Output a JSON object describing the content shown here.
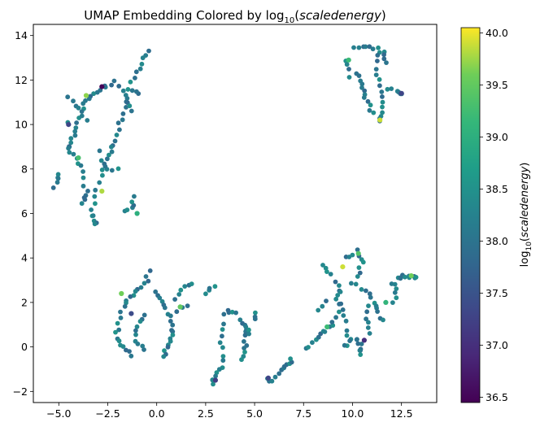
{
  "chart_data": {
    "type": "scatter",
    "title": {
      "prefix": "UMAP Embedding Colored by log",
      "sub": "10",
      "suffix": "(",
      "italic": "scaledenergy",
      "close": ")"
    },
    "xlim": [
      -6.3,
      14.3
    ],
    "ylim": [
      -2.5,
      14.5
    ],
    "xticks": [
      -5.0,
      -2.5,
      0.0,
      2.5,
      5.0,
      7.5,
      10.0,
      12.5
    ],
    "xtick_labels": [
      "−5.0",
      "−2.5",
      "0.0",
      "2.5",
      "5.0",
      "7.5",
      "10.0",
      "12.5"
    ],
    "yticks": [
      -2,
      0,
      2,
      4,
      6,
      8,
      10,
      12,
      14
    ],
    "ytick_labels": [
      "−2",
      "0",
      "2",
      "4",
      "6",
      "8",
      "10",
      "12",
      "14"
    ],
    "grid": false,
    "colormap": "viridis",
    "colorbar": {
      "label": {
        "prefix": "log",
        "sub": "10",
        "open": "(",
        "italic": "scaledenergy",
        "close": ")"
      },
      "range": [
        36.45,
        40.05
      ],
      "ticks": [
        36.5,
        37.0,
        37.5,
        38.0,
        38.5,
        39.0,
        39.5,
        40.0
      ],
      "tick_labels": [
        "36.5",
        "37.0",
        "37.5",
        "38.0",
        "38.5",
        "39.0",
        "39.5",
        "40.0"
      ]
    },
    "strands": [
      {
        "path": [
          [
            -0.4,
            13.3
          ],
          [
            -0.9,
            12.5
          ],
          [
            -1.5,
            11.4
          ],
          [
            -1.8,
            10.2
          ],
          [
            -2.2,
            9.2
          ],
          [
            -2.5,
            8.5
          ],
          [
            -3.0,
            7.3
          ],
          [
            -3.3,
            6.0
          ],
          [
            -3.1,
            5.5
          ]
        ],
        "count": 36
      },
      {
        "path": [
          [
            -2.2,
            11.9
          ],
          [
            -2.9,
            11.6
          ],
          [
            -3.5,
            11.2
          ],
          [
            -3.9,
            10.5
          ],
          [
            -4.2,
            9.6
          ],
          [
            -4.5,
            8.8
          ],
          [
            -3.9,
            8.2
          ],
          [
            -3.6,
            7.0
          ],
          [
            -3.8,
            6.5
          ]
        ],
        "count": 34
      },
      {
        "path": [
          [
            -4.5,
            11.2
          ],
          [
            -4.1,
            10.8
          ],
          [
            -3.5,
            10.2
          ]
        ],
        "count": 6
      },
      {
        "path": [
          [
            -1.9,
            11.8
          ],
          [
            -1.5,
            11.1
          ],
          [
            -1.2,
            10.6
          ]
        ],
        "count": 6
      },
      {
        "path": [
          [
            -5.0,
            7.8
          ],
          [
            -5.2,
            7.2
          ]
        ],
        "count": 5
      },
      {
        "path": [
          [
            -2.0,
            8.0
          ],
          [
            -2.6,
            7.9
          ],
          [
            -3.0,
            8.8
          ]
        ],
        "count": 6
      },
      {
        "path": [
          [
            -1.6,
            6.1
          ],
          [
            -1.2,
            6.3
          ],
          [
            -1.2,
            6.7
          ]
        ],
        "count": 6
      },
      {
        "path": [
          [
            -1.0,
            11.4
          ],
          [
            -1.2,
            11.6
          ]
        ],
        "count": 3
      },
      {
        "path": [
          [
            -4.5,
            10.0
          ]
        ],
        "count": 1
      },
      {
        "path": [
          [
            -4.5,
            9.0
          ]
        ],
        "count": 2
      },
      {
        "path": [
          [
            10.1,
            13.5
          ],
          [
            10.9,
            13.5
          ],
          [
            11.5,
            13.3
          ],
          [
            11.7,
            12.8
          ]
        ],
        "count": 12
      },
      {
        "path": [
          [
            11.2,
            13.1
          ],
          [
            11.3,
            12.2
          ],
          [
            11.6,
            11.4
          ],
          [
            11.5,
            10.6
          ],
          [
            11.4,
            10.1
          ]
        ],
        "count": 14
      },
      {
        "path": [
          [
            10.2,
            12.3
          ],
          [
            10.5,
            11.8
          ],
          [
            10.7,
            11.1
          ],
          [
            11.0,
            10.5
          ]
        ],
        "count": 12
      },
      {
        "path": [
          [
            11.8,
            11.6
          ],
          [
            12.4,
            11.5
          ],
          [
            12.6,
            11.3
          ]
        ],
        "count": 6
      },
      {
        "path": [
          [
            9.7,
            12.9
          ],
          [
            9.9,
            12.2
          ]
        ],
        "count": 4
      },
      {
        "path": [
          [
            -0.4,
            3.4
          ],
          [
            -0.6,
            2.8
          ],
          [
            -1.2,
            2.4
          ],
          [
            -1.6,
            2.0
          ],
          [
            -1.9,
            1.3
          ],
          [
            -2.1,
            0.5
          ],
          [
            -1.8,
            0.0
          ],
          [
            -1.3,
            -0.4
          ]
        ],
        "count": 24
      },
      {
        "path": [
          [
            0.0,
            2.5
          ],
          [
            0.4,
            2.0
          ],
          [
            0.7,
            1.2
          ],
          [
            0.8,
            0.6
          ],
          [
            0.6,
            0.0
          ],
          [
            0.3,
            -0.4
          ]
        ],
        "count": 20
      },
      {
        "path": [
          [
            -0.7,
            1.5
          ],
          [
            -1.0,
            0.9
          ],
          [
            -1.0,
            0.3
          ],
          [
            -0.7,
            -0.1
          ]
        ],
        "count": 10
      },
      {
        "path": [
          [
            1.0,
            2.2
          ],
          [
            1.4,
            2.7
          ],
          [
            1.7,
            2.9
          ]
        ],
        "count": 6
      },
      {
        "path": [
          [
            1.1,
            1.6
          ],
          [
            1.5,
            1.9
          ]
        ],
        "count": 3
      },
      {
        "path": [
          [
            2.5,
            2.4
          ],
          [
            2.9,
            2.7
          ]
        ],
        "count": 4
      },
      {
        "path": [
          [
            3.4,
            1.4
          ],
          [
            3.3,
            0.3
          ],
          [
            3.4,
            -0.8
          ],
          [
            3.0,
            -1.4
          ],
          [
            2.8,
            -1.6
          ]
        ],
        "count": 16
      },
      {
        "path": [
          [
            3.6,
            1.6
          ],
          [
            4.0,
            1.6
          ]
        ],
        "count": 4
      },
      {
        "path": [
          [
            4.3,
            1.2
          ],
          [
            4.6,
            0.8
          ],
          [
            4.5,
            0.0
          ],
          [
            4.3,
            -0.5
          ]
        ],
        "count": 12
      },
      {
        "path": [
          [
            5.0,
            1.5
          ],
          [
            5.1,
            1.2
          ]
        ],
        "count": 3
      },
      {
        "path": [
          [
            4.6,
            0.8
          ],
          [
            4.8,
            0.6
          ]
        ],
        "count": 3
      },
      {
        "path": [
          [
            6.1,
            -1.3
          ],
          [
            6.6,
            -0.9
          ],
          [
            6.9,
            -0.6
          ]
        ],
        "count": 9
      },
      {
        "path": [
          [
            5.6,
            -1.4
          ],
          [
            5.9,
            -1.6
          ]
        ],
        "count": 3
      },
      {
        "path": [
          [
            7.7,
            -0.1
          ],
          [
            8.1,
            0.3
          ],
          [
            8.6,
            0.7
          ],
          [
            9.0,
            1.1
          ],
          [
            9.4,
            1.9
          ]
        ],
        "count": 14
      },
      {
        "path": [
          [
            8.4,
            3.7
          ],
          [
            8.9,
            3.2
          ],
          [
            9.4,
            2.6
          ],
          [
            9.2,
            2.1
          ],
          [
            9.6,
            1.4
          ],
          [
            9.8,
            0.5
          ]
        ],
        "count": 16
      },
      {
        "path": [
          [
            9.6,
            4.0
          ],
          [
            10.3,
            4.3
          ],
          [
            10.5,
            3.8
          ],
          [
            10.2,
            3.1
          ]
        ],
        "count": 10
      },
      {
        "path": [
          [
            10.0,
            2.9
          ],
          [
            10.8,
            2.4
          ],
          [
            11.2,
            1.8
          ],
          [
            11.5,
            1.2
          ]
        ],
        "count": 12
      },
      {
        "path": [
          [
            10.2,
            0.4
          ],
          [
            10.5,
            0.0
          ],
          [
            10.4,
            -0.3
          ]
        ],
        "count": 8
      },
      {
        "path": [
          [
            9.9,
            0.3
          ],
          [
            9.6,
            0.0
          ]
        ],
        "count": 4
      },
      {
        "path": [
          [
            12.3,
            3.1
          ],
          [
            12.8,
            3.2
          ],
          [
            13.3,
            3.1
          ]
        ],
        "count": 10
      },
      {
        "path": [
          [
            12.0,
            2.9
          ],
          [
            12.3,
            2.5
          ],
          [
            12.1,
            2.0
          ]
        ],
        "count": 6
      },
      {
        "path": [
          [
            8.6,
            2.0
          ],
          [
            8.2,
            1.7
          ]
        ],
        "count": 3
      },
      {
        "path": [
          [
            10.9,
            1.8
          ],
          [
            10.7,
            1.2
          ],
          [
            10.8,
            0.6
          ]
        ],
        "count": 6
      }
    ],
    "highlight_points": [
      {
        "x": -2.8,
        "y": 11.7,
        "value": 36.5
      },
      {
        "x": -3.6,
        "y": 11.3,
        "value": 39.7
      },
      {
        "x": -2.8,
        "y": 7.0,
        "value": 39.8
      },
      {
        "x": -4.0,
        "y": 8.5,
        "value": 39.3
      },
      {
        "x": -1.8,
        "y": 2.4,
        "value": 39.6
      },
      {
        "x": 1.2,
        "y": 1.8,
        "value": 39.5
      },
      {
        "x": 9.5,
        "y": 3.6,
        "value": 39.9
      },
      {
        "x": 10.3,
        "y": 4.2,
        "value": 39.4
      },
      {
        "x": 11.4,
        "y": 10.2,
        "value": 39.9
      },
      {
        "x": 13.0,
        "y": 3.2,
        "value": 39.6
      },
      {
        "x": -1.3,
        "y": 1.5,
        "value": 37.4
      },
      {
        "x": 3.0,
        "y": -1.5,
        "value": 37.2
      },
      {
        "x": 10.6,
        "y": 0.3,
        "value": 37.0
      },
      {
        "x": 5.7,
        "y": -1.4,
        "value": 37.3
      },
      {
        "x": 12.5,
        "y": 11.4,
        "value": 37.3
      },
      {
        "x": -4.5,
        "y": 10.0,
        "value": 37.3
      },
      {
        "x": 9.8,
        "y": 12.9,
        "value": 39.2
      },
      {
        "x": 11.7,
        "y": 2.0,
        "value": 39.1
      },
      {
        "x": -1.0,
        "y": 6.0,
        "value": 39.0
      },
      {
        "x": 8.7,
        "y": 0.9,
        "value": 39.2
      }
    ]
  }
}
